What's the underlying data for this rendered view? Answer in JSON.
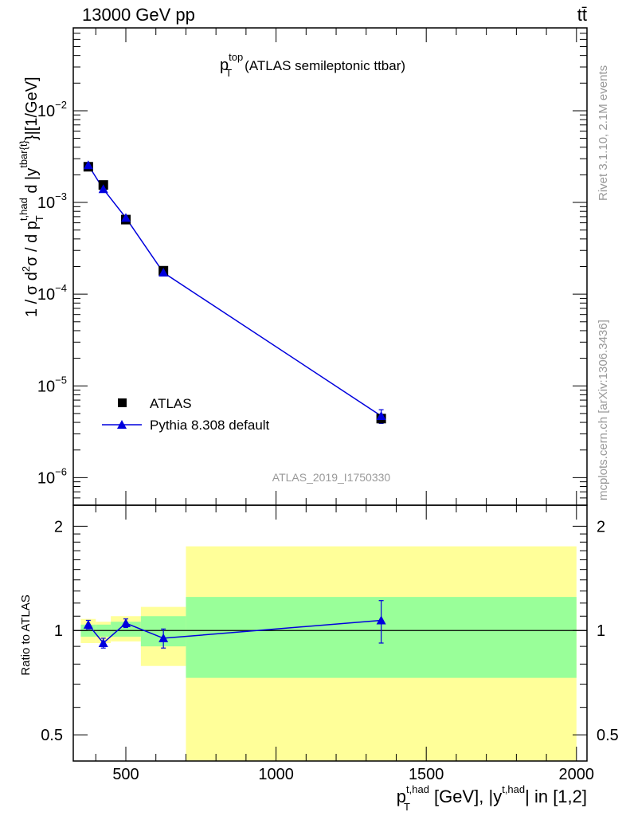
{
  "header": {
    "energy_label": "13000 GeV pp",
    "process_label": "tt̄"
  },
  "colors": {
    "data_marker": "#000000",
    "mc_line": "#0000dd",
    "band_inner": "#99ff99",
    "band_outer": "#ffff99",
    "side_text": "#999999"
  },
  "chart_data": [
    {
      "type": "scatter",
      "panel": "main",
      "title": {
        "symbol": "p",
        "sup": "top",
        "sub": "T",
        "rest": "(ATLAS semileptonic ttbar)"
      },
      "ylabel": {
        "pre": "1 / σ d",
        "sup1": "2",
        "mid": "σ / d p",
        "sup2": "t,had",
        "sub2": "T",
        "mid2": " d |y",
        "sup3": "tbar{t}",
        "post": "}|[1/GeV]"
      },
      "y_scale": "log",
      "ylim": [
        5e-07,
        0.08
      ],
      "y_tick_labels": [
        {
          "value": 1e-06,
          "base": "10",
          "exp": "−6"
        },
        {
          "value": 1e-05,
          "base": "10",
          "exp": "−5"
        },
        {
          "value": 0.0001,
          "base": "10",
          "exp": "−4"
        },
        {
          "value": 0.001,
          "base": "10",
          "exp": "−3"
        },
        {
          "value": 0.01,
          "base": "10",
          "exp": "−2"
        }
      ],
      "xlim": [
        325,
        2035
      ],
      "analysis_label": "ATLAS_2019_I1750330",
      "series": [
        {
          "name": "ATLAS",
          "marker": "square",
          "x": [
            375,
            425,
            500,
            625,
            1350
          ],
          "y": [
            0.00245,
            0.00155,
            0.00065,
            0.00018,
            4.4e-06
          ]
        },
        {
          "name": "Pythia 8.308 default",
          "marker": "triangle",
          "x": [
            375,
            425,
            500,
            625,
            1350
          ],
          "y": [
            0.00255,
            0.0014,
            0.00068,
            0.000172,
            4.7e-06
          ],
          "y_err": [
            0.0001,
            5e-05,
            3e-05,
            7e-06,
            8e-07
          ]
        }
      ]
    },
    {
      "type": "line",
      "panel": "ratio",
      "ylabel": "Ratio to ATLAS",
      "ylim": [
        0.42,
        2.3
      ],
      "y_scale": "log",
      "y_tick_labels": [
        {
          "value": 0.5,
          "label": "0.5"
        },
        {
          "value": 1,
          "label": "1"
        },
        {
          "value": 2,
          "label": "2"
        }
      ],
      "xlim": [
        325,
        2035
      ],
      "x_tick_labels": [
        {
          "value": 500,
          "label": "500"
        },
        {
          "value": 1000,
          "label": "1000"
        },
        {
          "value": 1500,
          "label": "1500"
        },
        {
          "value": 2000,
          "label": "2000"
        }
      ],
      "xlabel": {
        "pre": "p",
        "sup": "t,had",
        "sub": "T",
        "mid": " [GeV], |y",
        "sup2": "t,had",
        "post": "| in [1,2]"
      },
      "bins": [
        {
          "lo": 350,
          "hi": 400,
          "inner": [
            0.96,
            1.04
          ],
          "outer": [
            0.92,
            1.08
          ]
        },
        {
          "lo": 400,
          "hi": 450,
          "inner": [
            0.96,
            1.04
          ],
          "outer": [
            0.92,
            1.06
          ]
        },
        {
          "lo": 450,
          "hi": 550,
          "inner": [
            0.96,
            1.06
          ],
          "outer": [
            0.93,
            1.1
          ]
        },
        {
          "lo": 550,
          "hi": 700,
          "inner": [
            0.9,
            1.1
          ],
          "outer": [
            0.79,
            1.17
          ]
        },
        {
          "lo": 700,
          "hi": 2000,
          "inner": [
            0.73,
            1.25
          ],
          "outer": [
            0.42,
            1.75
          ]
        }
      ],
      "series": [
        {
          "name": "Pythia 8.308 default",
          "x": [
            375,
            425,
            500,
            625,
            1350
          ],
          "y": [
            1.04,
            0.92,
            1.05,
            0.95,
            1.07
          ],
          "y_err": [
            0.03,
            0.03,
            0.03,
            0.06,
            0.15
          ]
        }
      ]
    }
  ],
  "side_labels": {
    "rivet": "Rivet 3.1.10,  2.1M events",
    "mcplots": "mcplots.cern.ch [arXiv:1306.3436]"
  }
}
